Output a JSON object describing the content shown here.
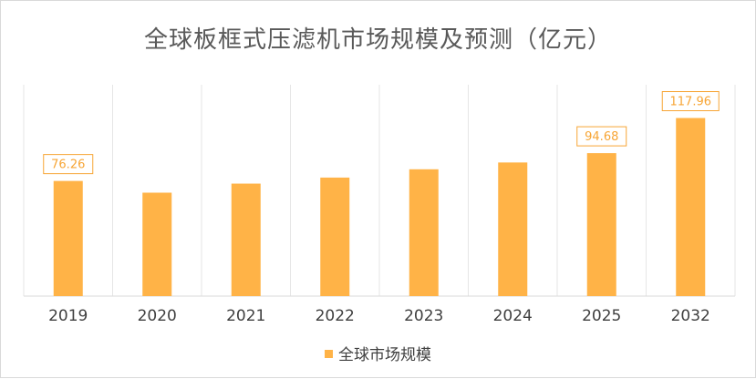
{
  "chart_data": {
    "type": "bar",
    "title": "全球板框式压滤机市场规模及预测（亿元）",
    "categories": [
      "2019",
      "2020",
      "2021",
      "2022",
      "2023",
      "2024",
      "2025",
      "2032"
    ],
    "series": [
      {
        "name": "全球市场规模",
        "values": [
          76.26,
          68.5,
          74.5,
          78.5,
          84.0,
          88.5,
          94.68,
          117.96
        ],
        "labels": [
          "76.26",
          "",
          "",
          "",
          "",
          "",
          "94.68",
          "117.96"
        ]
      }
    ],
    "ylim": [
      0,
      140
    ],
    "grid": "vertical",
    "legend_position": "bottom",
    "colors": {
      "bar": "#ffb347",
      "label_border": "#f7a535",
      "label_text": "#f7a535",
      "axis": "#d9d9d9",
      "grid": "#e6e6e6"
    }
  }
}
